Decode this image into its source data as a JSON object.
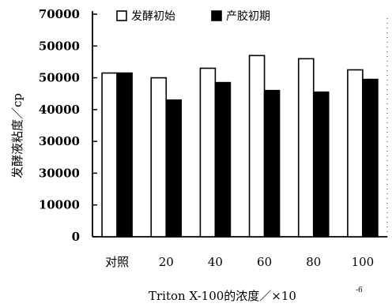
{
  "chart_data": {
    "type": "bar",
    "xlabel": "Triton X-100的浓度／×10",
    "xlabel_exponent": "-6",
    "ylabel": "发酵液粘度／cp",
    "categories": [
      "对照",
      "20",
      "40",
      "60",
      "80",
      "100"
    ],
    "ytick_labels": [
      "0",
      "10000",
      "30000",
      "30000",
      "40000",
      "50000",
      "50000",
      "70000"
    ],
    "ylim": [
      0,
      70000
    ],
    "grid": false,
    "legend_position": "top",
    "series": [
      {
        "name": "发酵初始",
        "values": [
          51500,
          50000,
          53000,
          57000,
          56000,
          52500
        ],
        "color": "#ffffff"
      },
      {
        "name": "产胶初期",
        "values": [
          51500,
          43000,
          48500,
          46000,
          45500,
          49500
        ],
        "color": "#000000"
      }
    ]
  }
}
